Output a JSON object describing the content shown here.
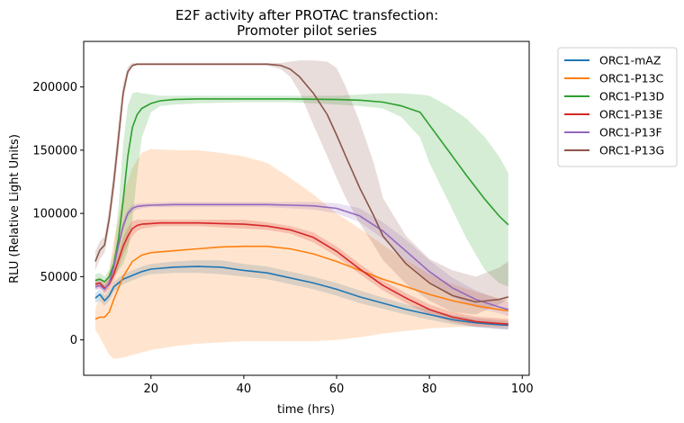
{
  "chart_data": {
    "type": "line",
    "title": "E2F activity after PROTAC transfection:",
    "subtitle": "Promoter pilot series",
    "xlabel": "time (hrs)",
    "ylabel": "RLU (Relative Light Units)",
    "xlim": [
      5.5,
      101.5
    ],
    "ylim": [
      -28000,
      236000
    ],
    "xticks": [
      20,
      40,
      60,
      80,
      100
    ],
    "xtick_labels": [
      "20",
      "40",
      "60",
      "80",
      "100"
    ],
    "yticks": [
      0,
      50000,
      100000,
      150000,
      200000
    ],
    "ytick_labels": [
      "0",
      "50000",
      "100000",
      "150000",
      "200000"
    ],
    "grid": false,
    "legend_position": "outside-right-top",
    "series": [
      {
        "name": "ORC1-mAZ",
        "color": "#1f77b4",
        "x": [
          8,
          9,
          10,
          11,
          12,
          14,
          16,
          18,
          20,
          25,
          30,
          35,
          40,
          45,
          50,
          55,
          60,
          65,
          70,
          75,
          80,
          85,
          90,
          95,
          97
        ],
        "y": [
          33000,
          36000,
          31000,
          35000,
          42000,
          48000,
          51000,
          54000,
          56000,
          57500,
          58000,
          57500,
          55000,
          53000,
          49000,
          45000,
          40000,
          34000,
          29000,
          24000,
          20000,
          16000,
          13500,
          12000,
          11500
        ],
        "band_low": [
          29000,
          31000,
          27000,
          31000,
          38000,
          44000,
          47000,
          50000,
          52000,
          53000,
          53000,
          52000,
          50000,
          48000,
          44000,
          40000,
          35000,
          29000,
          24500,
          20000,
          16000,
          12500,
          10000,
          8500,
          8000
        ],
        "band_high": [
          37000,
          40000,
          35000,
          39000,
          46000,
          52000,
          55000,
          58000,
          60000,
          62000,
          63000,
          63000,
          60000,
          58000,
          54000,
          50000,
          45000,
          39000,
          33500,
          28000,
          24000,
          19500,
          17000,
          15500,
          15000
        ]
      },
      {
        "name": "ORC1-P13C",
        "color": "#ff7f0e",
        "x": [
          8,
          9,
          10,
          11,
          12,
          14,
          16,
          18,
          20,
          25,
          30,
          35,
          40,
          45,
          50,
          55,
          60,
          65,
          70,
          75,
          80,
          85,
          90,
          95,
          97
        ],
        "y": [
          16500,
          18000,
          18000,
          22000,
          32000,
          50000,
          62000,
          67000,
          69000,
          70500,
          72000,
          73500,
          74000,
          74000,
          72000,
          68000,
          62000,
          55000,
          48000,
          42000,
          36000,
          31000,
          27000,
          24000,
          23000
        ],
        "band_low": [
          8000,
          2000,
          -5000,
          -12000,
          -15000,
          -14000,
          -12000,
          -10000,
          -8000,
          -5000,
          -3000,
          -2000,
          -1000,
          -1000,
          -1000,
          -1000,
          0,
          2000,
          5000,
          7000,
          9000,
          10000,
          10500,
          11000,
          11000
        ],
        "band_high": [
          25000,
          34000,
          41000,
          56000,
          79000,
          114000,
          136000,
          148000,
          151000,
          150000,
          150000,
          148000,
          145000,
          140000,
          128000,
          115000,
          100000,
          88000,
          75000,
          63000,
          52000,
          44000,
          38000,
          33000,
          32000
        ]
      },
      {
        "name": "ORC1-P13D",
        "color": "#2ca02c",
        "x": [
          8,
          9,
          10,
          11,
          12,
          13,
          14,
          15,
          16,
          17,
          18,
          20,
          22,
          25,
          30,
          40,
          50,
          60,
          65,
          70,
          74,
          78,
          80,
          84,
          88,
          92,
          95,
          97
        ],
        "y": [
          47000,
          48000,
          46000,
          50000,
          60000,
          80000,
          110000,
          145000,
          168000,
          178000,
          183000,
          187000,
          189000,
          190000,
          190500,
          190500,
          190500,
          190000,
          189500,
          188000,
          185000,
          180000,
          170000,
          150000,
          130000,
          111000,
          98000,
          91000
        ],
        "band_low": [
          42000,
          44000,
          42000,
          46000,
          50000,
          55000,
          60000,
          70000,
          95000,
          130000,
          160000,
          180000,
          185000,
          186000,
          187000,
          188000,
          188000,
          186000,
          185000,
          183000,
          176000,
          160000,
          140000,
          110000,
          80000,
          55000,
          45000,
          42000
        ],
        "band_high": [
          52000,
          53000,
          50000,
          55000,
          70000,
          105000,
          155000,
          185000,
          195000,
          196000,
          195000,
          194000,
          193000,
          193000,
          193000,
          193000,
          193000,
          193000,
          194000,
          195000,
          195000,
          194000,
          193000,
          185000,
          175000,
          160000,
          145000,
          132000
        ]
      },
      {
        "name": "ORC1-P13E",
        "color": "#d62728",
        "x": [
          8,
          9,
          10,
          11,
          12,
          13,
          14,
          15,
          16,
          17,
          18,
          20,
          22,
          25,
          30,
          35,
          40,
          45,
          50,
          55,
          60,
          65,
          70,
          75,
          80,
          85,
          90,
          95,
          97
        ],
        "y": [
          44000,
          45000,
          41000,
          44000,
          52000,
          63000,
          74000,
          82000,
          88000,
          90500,
          91500,
          92000,
          92500,
          92500,
          92500,
          92000,
          91500,
          90000,
          87000,
          81000,
          70000,
          56000,
          43000,
          33000,
          24000,
          18000,
          14500,
          13000,
          12500
        ],
        "band_low": [
          40000,
          41000,
          37000,
          40000,
          47000,
          57000,
          67000,
          75000,
          82000,
          86000,
          88000,
          89000,
          90000,
          90000,
          90000,
          89000,
          88000,
          87000,
          84000,
          77000,
          66000,
          52000,
          39000,
          29000,
          20000,
          14000,
          10500,
          9000,
          8500
        ],
        "band_high": [
          48000,
          49000,
          45000,
          48000,
          57000,
          69000,
          81000,
          89000,
          94000,
          95000,
          95000,
          95000,
          95000,
          95000,
          95000,
          95000,
          95000,
          93000,
          90000,
          85000,
          74000,
          60000,
          47000,
          37000,
          28000,
          22000,
          18500,
          17000,
          16500
        ]
      },
      {
        "name": "ORC1-P13F",
        "color": "#9467bd",
        "x": [
          8,
          9,
          10,
          11,
          12,
          13,
          14,
          15,
          16,
          17,
          18,
          20,
          25,
          30,
          35,
          40,
          45,
          50,
          55,
          60,
          65,
          70,
          75,
          80,
          85,
          90,
          95,
          97
        ],
        "y": [
          42000,
          43000,
          40000,
          45000,
          58000,
          75000,
          90000,
          100000,
          104000,
          105500,
          106000,
          106500,
          107000,
          107000,
          107000,
          107000,
          107000,
          106500,
          106000,
          104000,
          98000,
          86000,
          70000,
          54000,
          41000,
          32000,
          26000,
          24000
        ],
        "band_low": [
          39000,
          40000,
          37000,
          42000,
          54000,
          71000,
          86000,
          97000,
          101000,
          103000,
          104000,
          105000,
          105000,
          105000,
          105000,
          105000,
          105000,
          104000,
          103000,
          100000,
          93000,
          80000,
          62000,
          46000,
          34000,
          26000,
          21000,
          19000
        ],
        "band_high": [
          45000,
          46000,
          43000,
          48000,
          62000,
          79000,
          94000,
          103000,
          107000,
          108000,
          108000,
          108500,
          109000,
          109000,
          109000,
          109000,
          109000,
          109000,
          109000,
          108000,
          104000,
          93000,
          79000,
          63000,
          49000,
          39000,
          32000,
          30000
        ]
      },
      {
        "name": "ORC1-P13G",
        "color": "#8c564b",
        "x": [
          8,
          9,
          10,
          11,
          12,
          13,
          14,
          15,
          16,
          17,
          18,
          20,
          25,
          30,
          35,
          40,
          45,
          48,
          50,
          52,
          55,
          58,
          60,
          62,
          65,
          68,
          70,
          75,
          80,
          85,
          90,
          95,
          97
        ],
        "y": [
          62000,
          71000,
          75000,
          96000,
          125000,
          160000,
          195000,
          212000,
          217000,
          218000,
          218000,
          218000,
          218000,
          218000,
          218000,
          218000,
          218000,
          217000,
          214000,
          208000,
          195000,
          178000,
          162000,
          145000,
          120000,
          98000,
          82000,
          60000,
          45000,
          35000,
          30000,
          32000,
          34000
        ],
        "band_low": [
          55000,
          64000,
          69000,
          88000,
          115000,
          148000,
          188000,
          209000,
          216000,
          217000,
          217000,
          217000,
          217000,
          217000,
          217000,
          217000,
          217000,
          214000,
          208000,
          196000,
          170000,
          145000,
          128000,
          112000,
          92000,
          75000,
          63000,
          44000,
          31000,
          22000,
          20000,
          28000,
          32000
        ],
        "band_high": [
          70000,
          78000,
          82000,
          105000,
          136000,
          172000,
          203000,
          216000,
          219000,
          219000,
          219000,
          219000,
          219000,
          219000,
          219000,
          219000,
          219000,
          219000,
          220000,
          221000,
          221000,
          220000,
          215000,
          200000,
          172000,
          140000,
          112000,
          82000,
          64000,
          55000,
          50000,
          57000,
          62000
        ]
      }
    ]
  }
}
